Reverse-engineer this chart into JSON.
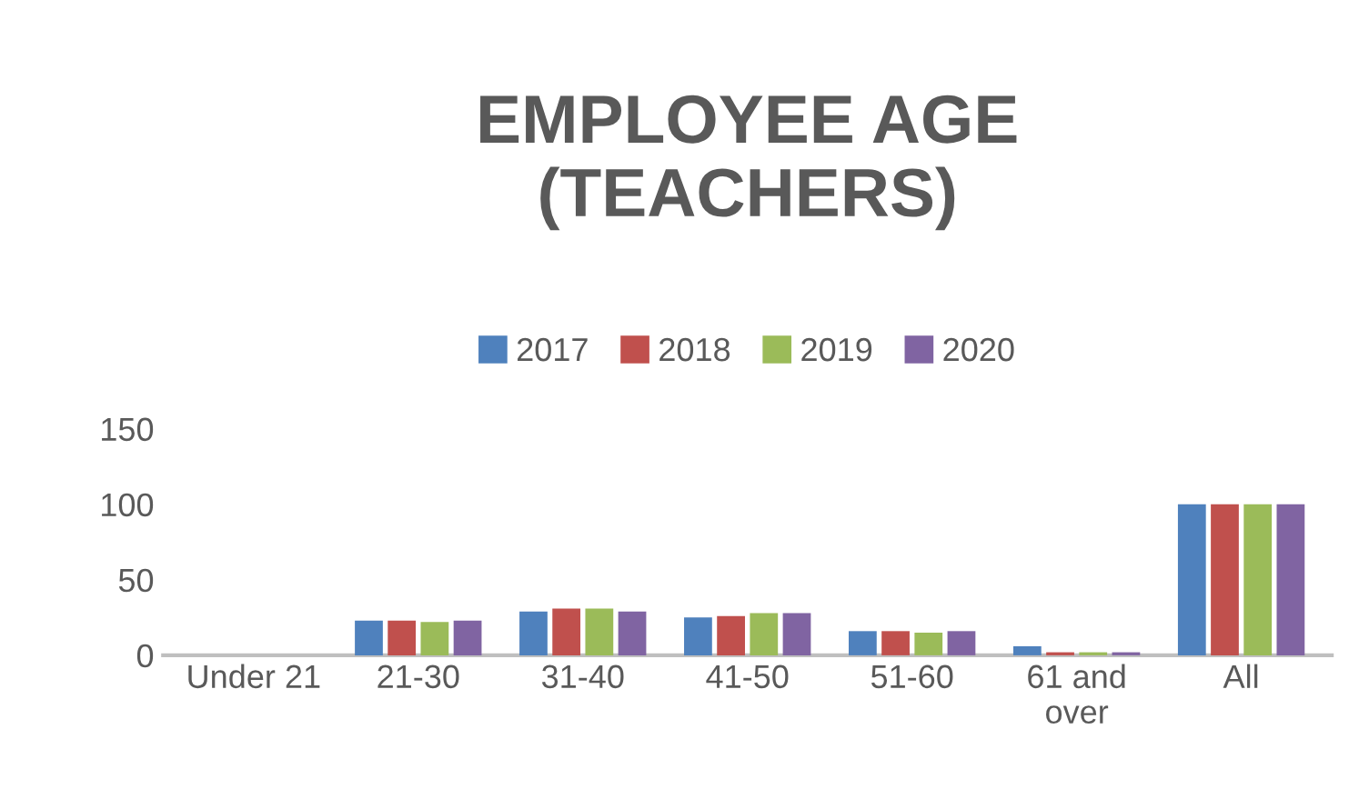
{
  "chart_data": {
    "type": "bar",
    "title": "EMPLOYEE AGE (TEACHERS)",
    "categories": [
      "Under 21",
      "21-30",
      "31-40",
      "41-50",
      "51-60",
      "61 and over",
      "All"
    ],
    "series": [
      {
        "name": "2017",
        "color": "#4f81bd",
        "values": [
          0,
          23,
          29,
          25,
          16,
          6,
          100
        ]
      },
      {
        "name": "2018",
        "color": "#c0504d",
        "values": [
          0,
          23,
          31,
          26,
          16,
          2,
          100
        ]
      },
      {
        "name": "2019",
        "color": "#9bbb59",
        "values": [
          0,
          22,
          31,
          28,
          15,
          2,
          100
        ]
      },
      {
        "name": "2020",
        "color": "#8064a2",
        "values": [
          0,
          23,
          29,
          28,
          16,
          2,
          100
        ]
      }
    ],
    "ylim": [
      0,
      150
    ],
    "yticks": [
      0,
      50,
      100,
      150
    ],
    "grid": false,
    "legend": "top"
  }
}
